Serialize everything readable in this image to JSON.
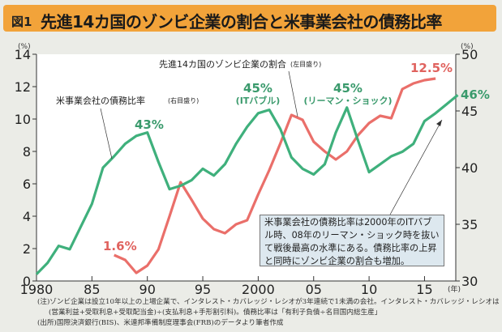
{
  "header": {
    "figure_label": "図1",
    "title": "先進14カ国のゾンビ企業の割合と米事業会社の債務比率"
  },
  "chart_data": {
    "type": "line",
    "title": "先進14カ国のゾンビ企業の割合と米事業会社の債務比率",
    "xlabel": "(年)",
    "left_axis": {
      "unit": "(%)",
      "range": [
        0,
        14
      ],
      "ticks": [
        0,
        2,
        4,
        6,
        8,
        10,
        12,
        14
      ]
    },
    "right_axis": {
      "unit": "(%)",
      "range": [
        30,
        50
      ],
      "ticks": [
        30,
        35,
        40,
        45,
        50
      ]
    },
    "x_range": [
      1980,
      2018.5
    ],
    "x_ticks": [
      {
        "v": 1980,
        "label": "1980"
      },
      {
        "v": 1985,
        "label": "85"
      },
      {
        "v": 1990,
        "label": "90"
      },
      {
        "v": 1995,
        "label": "95"
      },
      {
        "v": 2000,
        "label": "2000"
      },
      {
        "v": 2005,
        "label": "05"
      },
      {
        "v": 2010,
        "label": "10"
      },
      {
        "v": 2015,
        "label": "15"
      }
    ],
    "grid": false,
    "series": [
      {
        "name": "先進14カ国のゾンビ企業の割合(左目盛り)",
        "axis": "left",
        "color": "#ea6f6a",
        "x": [
          1987,
          1988,
          1989,
          1990,
          1991,
          1992,
          1993,
          1994,
          1995,
          1996,
          1997,
          1998,
          1999,
          2000,
          2001,
          2002,
          2003,
          2004,
          2005,
          2006,
          2007,
          2008,
          2009,
          2010,
          2011,
          2012,
          2013,
          2014,
          2015,
          2016
        ],
        "y": [
          1.6,
          1.3,
          0.5,
          0.95,
          1.95,
          4.0,
          6.1,
          5.0,
          3.85,
          3.2,
          2.95,
          3.5,
          3.75,
          5.35,
          6.85,
          8.5,
          10.25,
          9.95,
          8.6,
          8.0,
          7.5,
          8.0,
          9.0,
          9.75,
          10.2,
          10.05,
          11.85,
          12.2,
          12.4,
          12.5
        ]
      },
      {
        "name": "米事業会社の債務比率(右目盛り)",
        "axis": "right",
        "color": "#3fb07c",
        "x": [
          1980,
          1981,
          1982,
          1983,
          1984,
          1985,
          1986,
          1987,
          1988,
          1989,
          1990,
          1991,
          1992,
          1993,
          1994,
          1995,
          1996,
          1997,
          1998,
          1999,
          2000,
          2001,
          2002,
          2003,
          2004,
          2005,
          2006,
          2007,
          2008,
          2009,
          2010,
          2011,
          2012,
          2013,
          2014,
          2015,
          2016,
          2017,
          2018
        ],
        "y": [
          30.6,
          31.6,
          33.1,
          32.8,
          34.8,
          36.8,
          40.0,
          41.0,
          42.1,
          42.8,
          43.1,
          40.5,
          38.1,
          38.4,
          38.9,
          39.9,
          39.3,
          40.3,
          42.1,
          43.6,
          44.8,
          45.1,
          43.4,
          40.9,
          39.9,
          39.4,
          40.3,
          43.1,
          45.3,
          42.4,
          39.6,
          40.3,
          41.0,
          41.4,
          42.1,
          44.1,
          44.8,
          45.6,
          46.4
        ]
      }
    ],
    "annotations": {
      "red_start": "1.6%",
      "red_end": "12.5%",
      "green_1990": "43%",
      "green_2000": "45%",
      "green_2000_sub": "(ITバブル)",
      "green_2008": "45%",
      "green_2008_sub": "(リーマン・ショック)",
      "green_end": "46%",
      "red_series_label": "先進14カ国のゾンビ企業の割合",
      "red_series_axis": "(左目盛り)",
      "green_series_label": "米事業会社の債務比率",
      "green_series_axis": "(右目盛り)",
      "callout": "米事業会社の債務比率は2000年のITバブル時、08年のリーマン・ショック時を抜いて戦後最高の水準にある。債務比率の上昇と同時にゾンビ企業の割合も増加。"
    }
  },
  "notes": [
    "(注)ゾンビ企業は設立10年以上の上場企業で、インタレスト・カバレッジ・レシオが3年連続で1未満の会社。インタレスト・カバレッジ・レシオは",
    "(営業利益+受取利息+受取配当金)÷(支払利息+手形割引料)。債務比率は「有利子負債÷名目国内総生産」",
    "(出所)国際決済銀行(BIS)、米連邦準備制度理事会(FRB)のデータより筆者作成"
  ]
}
